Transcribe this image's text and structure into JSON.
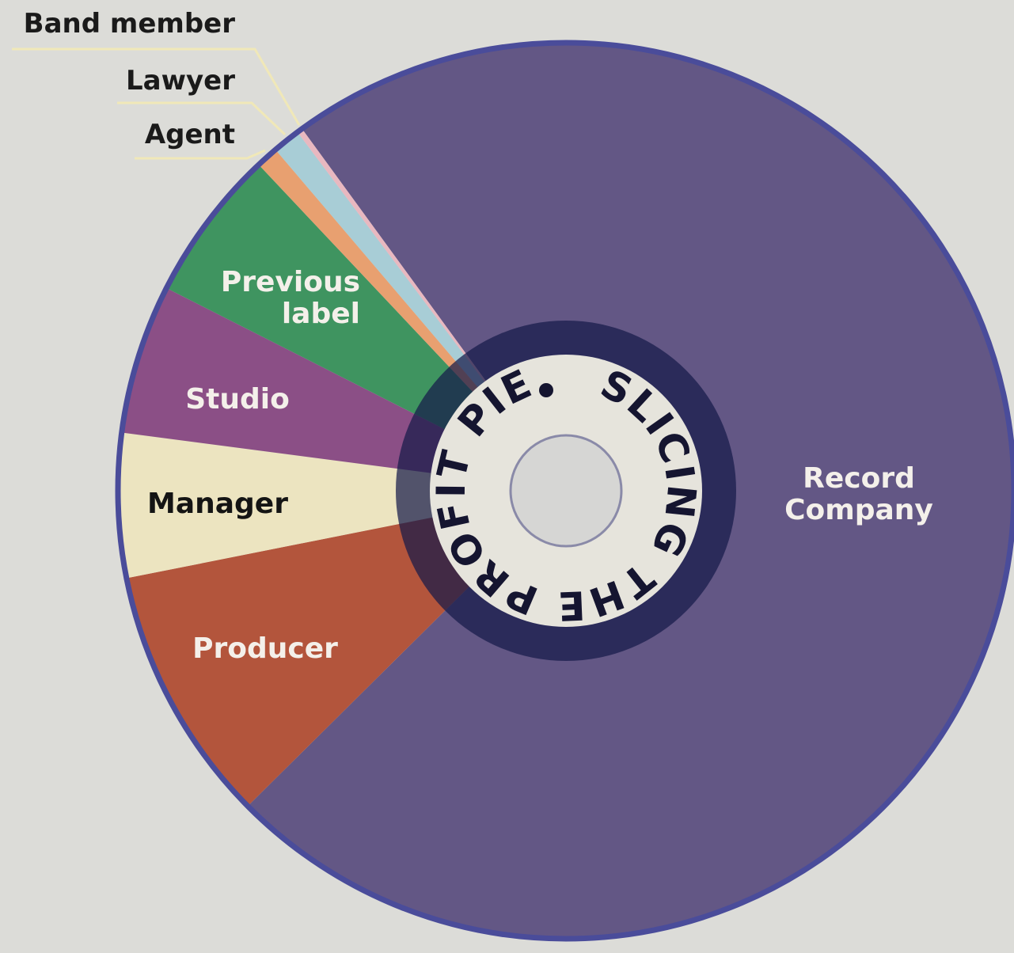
{
  "chart_data": {
    "type": "pie",
    "title": "SLICING THE PROFIT PIE",
    "categories": [
      "Record Company",
      "Producer",
      "Manager",
      "Studio",
      "Previous label",
      "Agent",
      "Lawyer",
      "Band member"
    ],
    "values": [
      72.6,
      9.3,
      5.2,
      5.4,
      5.5,
      0.8,
      1.0,
      0.2
    ],
    "colors": [
      "#635785",
      "#b3553c",
      "#ece4c0",
      "#8b4f86",
      "#3f9460",
      "#e8a070",
      "#a8cdd6",
      "#e8b8c0"
    ]
  }
}
